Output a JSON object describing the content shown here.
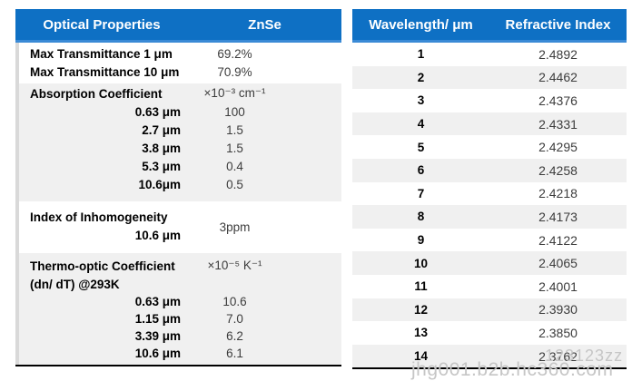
{
  "colors": {
    "header_blue": "#0E70C4",
    "header_blue_light_edge": "#3A8AD6",
    "row_alt_gray": "#F0F0F0",
    "left_edge_gray": "#D9D9D9",
    "bottom_border_black": "#000000",
    "watermark_gray": "#C6C6C6"
  },
  "left_table": {
    "header": {
      "property_col": "Optical Properties",
      "material_col": "ZnSe"
    },
    "sections": [
      {
        "rows": [
          {
            "label": "Max Transmittance 1 μm",
            "value": "69.2%"
          },
          {
            "label": "Max Transmittance 10 μm",
            "value": "70.9%"
          }
        ]
      },
      {
        "title": {
          "label": "Absorption Coefficient",
          "value": "×10⁻³ cm⁻¹"
        },
        "rows": [
          {
            "label": "0.63 μm",
            "value": "100"
          },
          {
            "label": "2.7 μm",
            "value": "1.5"
          },
          {
            "label": "3.8 μm",
            "value": "1.5"
          },
          {
            "label": "5.3 μm",
            "value": "0.4"
          },
          {
            "label": "10.6μm",
            "value": "0.5"
          }
        ]
      },
      {
        "title": {
          "label": "Index of Inhomogeneity"
        },
        "sub_label": "10.6 μm",
        "value": "3ppm"
      },
      {
        "title": {
          "label": "Thermo-optic Coefficient",
          "value": "×10⁻⁵ K⁻¹"
        },
        "title_line2": "(dn/ dT) @293K",
        "rows": [
          {
            "label": "0.63 μm",
            "value": "10.6"
          },
          {
            "label": "1.15 μm",
            "value": "7.0"
          },
          {
            "label": "3.39 μm",
            "value": "6.2"
          },
          {
            "label": "10.6 μm",
            "value": "6.1"
          }
        ]
      }
    ]
  },
  "right_table": {
    "header": {
      "wavelength_col": "Wavelength/ μm",
      "index_col": "Refractive Index"
    },
    "rows": [
      {
        "wavelength": "1",
        "index": "2.4892"
      },
      {
        "wavelength": "2",
        "index": "2.4462"
      },
      {
        "wavelength": "3",
        "index": "2.4376"
      },
      {
        "wavelength": "4",
        "index": "2.4331"
      },
      {
        "wavelength": "5",
        "index": "2.4295"
      },
      {
        "wavelength": "6",
        "index": "2.4258"
      },
      {
        "wavelength": "7",
        "index": "2.4218"
      },
      {
        "wavelength": "8",
        "index": "2.4173"
      },
      {
        "wavelength": "9",
        "index": "2.4122"
      },
      {
        "wavelength": "10",
        "index": "2.4065"
      },
      {
        "wavelength": "11",
        "index": "2.4001"
      },
      {
        "wavelength": "12",
        "index": "2.3930"
      },
      {
        "wavelength": "13",
        "index": "2.3850"
      },
      {
        "wavelength": "14",
        "index": "2.3762"
      }
    ]
  },
  "watermark": {
    "line1": "123123zz",
    "line2": "jhg001.b2b.hc360.com"
  }
}
